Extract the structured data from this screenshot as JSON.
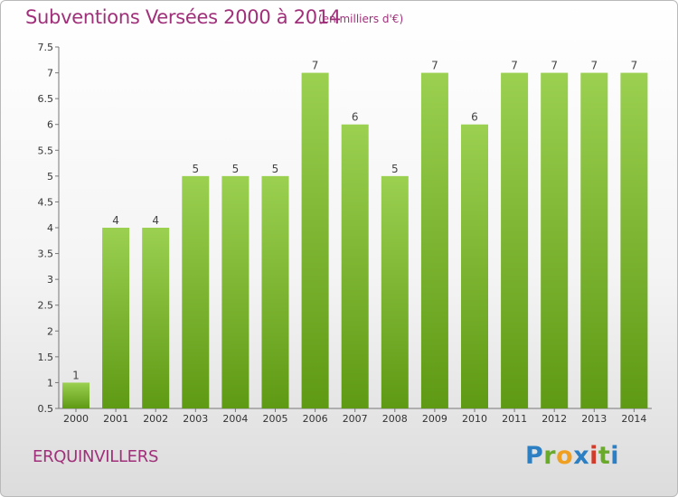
{
  "header": {
    "title": "Subventions Versées 2000 à 2014",
    "unit": "(en milliers d'€)"
  },
  "footer": {
    "commune": "ERQUINVILLERS",
    "logo": "Proxiti"
  },
  "colors": {
    "title": "#a0307a",
    "bar_top": "#9bd050",
    "bar_bottom": "#5f9a14"
  },
  "chart_data": {
    "type": "bar",
    "title": "Subventions Versées 2000 à 2014",
    "subtitle": "(en milliers d'€)",
    "categories": [
      "2000",
      "2001",
      "2002",
      "2003",
      "2004",
      "2005",
      "2006",
      "2007",
      "2008",
      "2009",
      "2010",
      "2011",
      "2012",
      "2013",
      "2014"
    ],
    "values": [
      1,
      4,
      4,
      5,
      5,
      5,
      7,
      6,
      5,
      7,
      6,
      7,
      7,
      7,
      7
    ],
    "yticks": [
      "0.5",
      "1",
      "1.5",
      "2",
      "2.5",
      "3",
      "3.5",
      "4",
      "4.5",
      "5",
      "5.5",
      "6",
      "6.5",
      "7",
      "7.5"
    ],
    "ylim": [
      0.5,
      7.5
    ],
    "grid": false,
    "legend": "none"
  }
}
